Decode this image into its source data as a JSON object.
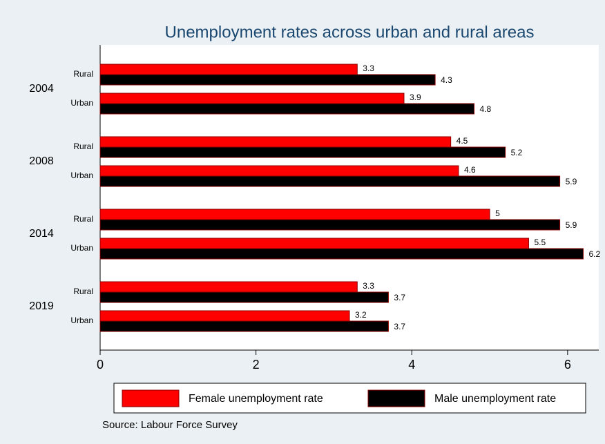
{
  "chart_data": {
    "type": "bar",
    "orientation": "horizontal",
    "title": "Unemployment rates across urban and rural areas",
    "groups": [
      "2004",
      "2008",
      "2014",
      "2019"
    ],
    "categories": [
      "Rural",
      "Urban",
      "Rural",
      "Urban",
      "Rural",
      "Urban",
      "Rural",
      "Urban"
    ],
    "series": [
      {
        "name": "Female unemployment rate",
        "color": "#ff0000",
        "values": [
          3.3,
          3.9,
          4.5,
          4.6,
          5,
          5.5,
          3.3,
          3.2
        ]
      },
      {
        "name": "Male unemployment rate",
        "color": "#000000",
        "values": [
          4.3,
          4.8,
          5.2,
          5.9,
          5.9,
          6.2,
          3.7,
          3.7
        ]
      }
    ],
    "xlim": [
      0,
      6.4
    ],
    "xticks": [
      0,
      2,
      4,
      6
    ],
    "grid": false,
    "legend": "bottom",
    "source": "Source: Labour Force Survey"
  }
}
